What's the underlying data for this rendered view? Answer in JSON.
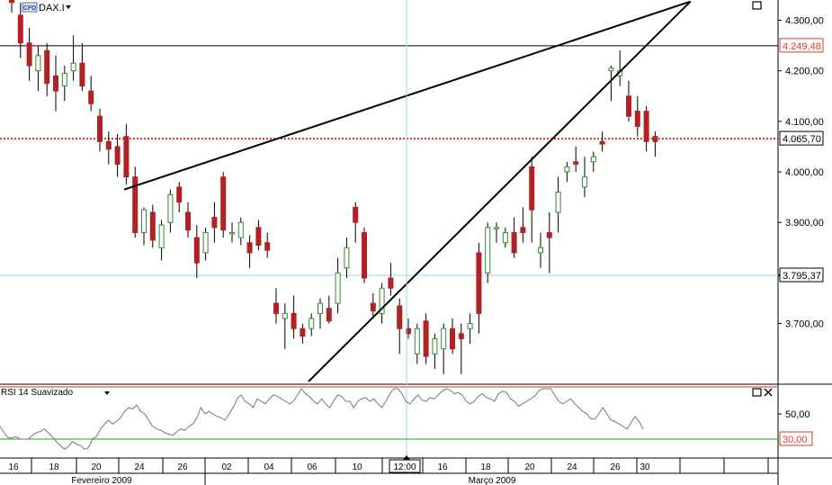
{
  "header": {
    "badge": "CFD",
    "symbol": "DAX.I",
    "dropdown_icon": "triangle-down"
  },
  "panels": {
    "maximize_icon": "window-square",
    "rsi_label": "RSI 14 Suavizado",
    "rsi_buttons": [
      "window-square",
      "close-x"
    ]
  },
  "colors": {
    "up": "#2e8b2e",
    "down": "#b22222",
    "trendline": "#000000",
    "dotted": "#cc0000",
    "crosshair": "#9fd6e8",
    "rsi_line": "#777777",
    "rsi_30": "#2e9e2e",
    "rsi_70": "#cc3333",
    "price_red_box": "#e03a2a"
  },
  "chart_data": [
    {
      "type": "candlestick",
      "symbol": "DAX.I",
      "ylim": [
        3580,
        4340
      ],
      "yticks": [
        "4.300,00",
        "4.200,00",
        "4.100,00",
        "4.000,00",
        "3.900,00",
        "3.700,00"
      ],
      "ytick_values": [
        4300,
        4200,
        4100,
        4000,
        3900,
        3700
      ],
      "price_labels": [
        {
          "label": "4.249,48",
          "value": 4249.48,
          "style": "red-box"
        },
        {
          "label": "4.065,70",
          "value": 4065.7,
          "style": "dark-box"
        },
        {
          "label": "3.795,37",
          "value": 3795.37,
          "style": "crosshair-box"
        }
      ],
      "horizontal_lines": [
        {
          "value": 4249.48,
          "style": "solid-black"
        },
        {
          "value": 4065.7,
          "style": "dotted-red"
        },
        {
          "value": 3795.37,
          "style": "crosshair"
        }
      ],
      "trendlines": [
        {
          "from": {
            "bar": 0,
            "price": 3965
          },
          "to": {
            "bar": 77,
            "price": 4337
          }
        },
        {
          "from": {
            "bar": 26,
            "price": 3590
          },
          "to": {
            "bar": 77,
            "price": 4337
          }
        }
      ],
      "bar_count": 74,
      "candles": [
        [
          4360,
          4380,
          4315,
          4335
        ],
        [
          4310,
          4335,
          4225,
          4255
        ],
        [
          4255,
          4285,
          4180,
          4210
        ],
        [
          4200,
          4250,
          4160,
          4230
        ],
        [
          4240,
          4255,
          4150,
          4175
        ],
        [
          4190,
          4230,
          4120,
          4160
        ],
        [
          4170,
          4210,
          4140,
          4195
        ],
        [
          4200,
          4270,
          4180,
          4215
        ],
        [
          4215,
          4255,
          4160,
          4170
        ],
        [
          4160,
          4190,
          4120,
          4135
        ],
        [
          4110,
          4125,
          4040,
          4060
        ],
        [
          4060,
          4080,
          4015,
          4045
        ],
        [
          4050,
          4075,
          3990,
          4015
        ],
        [
          4070,
          4095,
          3975,
          3990
        ],
        [
          3990,
          4010,
          3870,
          3880
        ],
        [
          3880,
          3930,
          3855,
          3925
        ],
        [
          3920,
          3935,
          3850,
          3865
        ],
        [
          3850,
          3905,
          3825,
          3895
        ],
        [
          3900,
          3965,
          3880,
          3955
        ],
        [
          3970,
          3980,
          3920,
          3940
        ],
        [
          3920,
          3940,
          3870,
          3885
        ],
        [
          3870,
          3895,
          3790,
          3820
        ],
        [
          3840,
          3890,
          3825,
          3880
        ],
        [
          3910,
          3940,
          3860,
          3890
        ],
        [
          3990,
          4000,
          3870,
          3885
        ],
        [
          3880,
          3900,
          3860,
          3880
        ],
        [
          3870,
          3910,
          3855,
          3900
        ],
        [
          3860,
          3875,
          3810,
          3840
        ],
        [
          3890,
          3905,
          3845,
          3855
        ],
        [
          3860,
          3880,
          3830,
          3845
        ],
        [
          3740,
          3770,
          3700,
          3720
        ],
        [
          3710,
          3740,
          3650,
          3720
        ],
        [
          3720,
          3755,
          3670,
          3690
        ],
        [
          3690,
          3700,
          3660,
          3675
        ],
        [
          3690,
          3720,
          3675,
          3710
        ],
        [
          3720,
          3750,
          3690,
          3740
        ],
        [
          3730,
          3755,
          3700,
          3705
        ],
        [
          3740,
          3830,
          3720,
          3800
        ],
        [
          3810,
          3870,
          3790,
          3850
        ],
        [
          3930,
          3940,
          3860,
          3900
        ],
        [
          3880,
          3890,
          3780,
          3790
        ],
        [
          3740,
          3760,
          3710,
          3725
        ],
        [
          3720,
          3780,
          3700,
          3770
        ],
        [
          3790,
          3820,
          3755,
          3770
        ],
        [
          3735,
          3750,
          3640,
          3690
        ],
        [
          3690,
          3710,
          3670,
          3680
        ],
        [
          3640,
          3700,
          3620,
          3690
        ],
        [
          3705,
          3720,
          3620,
          3635
        ],
        [
          3640,
          3680,
          3610,
          3670
        ],
        [
          3650,
          3700,
          3600,
          3690
        ],
        [
          3690,
          3710,
          3640,
          3650
        ],
        [
          3680,
          3700,
          3600,
          3670
        ],
        [
          3690,
          3720,
          3660,
          3700
        ],
        [
          3840,
          3860,
          3680,
          3720
        ],
        [
          3800,
          3900,
          3780,
          3890
        ],
        [
          3890,
          3900,
          3860,
          3890
        ],
        [
          3860,
          3890,
          3850,
          3880
        ],
        [
          3880,
          3910,
          3830,
          3840
        ],
        [
          3890,
          3930,
          3860,
          3880
        ],
        [
          4010,
          4030,
          3860,
          3925
        ],
        [
          3840,
          3880,
          3810,
          3850
        ],
        [
          3880,
          3920,
          3800,
          3870
        ],
        [
          3920,
          3990,
          3880,
          3960
        ],
        [
          4000,
          4020,
          3980,
          4010
        ],
        [
          4020,
          4050,
          4000,
          4015
        ],
        [
          3970,
          4030,
          3950,
          3990
        ],
        [
          4020,
          4040,
          4000,
          4030
        ],
        [
          4060,
          4080,
          4040,
          4055
        ],
        [
          4200,
          4210,
          4140,
          4205
        ],
        [
          4190,
          4240,
          4170,
          4200
        ],
        [
          4150,
          4180,
          4100,
          4110
        ],
        [
          4120,
          4150,
          4070,
          4090
        ],
        [
          4120,
          4130,
          4040,
          4060
        ],
        [
          4070,
          4080,
          4030,
          4060
        ]
      ]
    },
    {
      "type": "line",
      "title": "RSI 14 Suavizado",
      "ylim": [
        0,
        100
      ],
      "yticks": [
        "50,00"
      ],
      "ytick_values": [
        50
      ],
      "levels": [
        {
          "label": "30,00",
          "value": 30,
          "style": "green-box"
        },
        {
          "value": 70,
          "style": "red-line"
        }
      ],
      "values": [
        40,
        35,
        31,
        31,
        32,
        30,
        30,
        30,
        33,
        35,
        36,
        38,
        35,
        32,
        28,
        25,
        22,
        24,
        28,
        26,
        25,
        22,
        23,
        30,
        32,
        38,
        42,
        45,
        42,
        44,
        47,
        52,
        55,
        54,
        57,
        52,
        50,
        45,
        40,
        38,
        37,
        35,
        34,
        33,
        36,
        38,
        37,
        40,
        42,
        47,
        55,
        50,
        52,
        50,
        48,
        47,
        45,
        50,
        55,
        62,
        65,
        60,
        58,
        55,
        62,
        60,
        58,
        62,
        65,
        64,
        62,
        60,
        58,
        60,
        65,
        70,
        66,
        64,
        60,
        58,
        62,
        58,
        55,
        60,
        65,
        64,
        60,
        60,
        55,
        60,
        62,
        63,
        60,
        62,
        58,
        55,
        60,
        66,
        72,
        70,
        66,
        60,
        58,
        62,
        65,
        61,
        60,
        63,
        62,
        65,
        68,
        70,
        69,
        66,
        67,
        65,
        60,
        58,
        60,
        64,
        66,
        63,
        62,
        60,
        66,
        68,
        67,
        62,
        60,
        56,
        58,
        60,
        62,
        64,
        68,
        72,
        75,
        70,
        65,
        60,
        58,
        60,
        62,
        58,
        55,
        52,
        50,
        46,
        46,
        50,
        55,
        50,
        45,
        44,
        42,
        40,
        38,
        43,
        48,
        44,
        38
      ]
    }
  ],
  "x_axis": {
    "day_labels": [
      "16",
      "18",
      "20",
      "24",
      "26",
      "02",
      "04",
      "06",
      "10",
      "12:00",
      "16",
      "18",
      "20",
      "24",
      "26",
      "30"
    ],
    "month_labels": [
      "Fevereiro 2009",
      "Março 2009"
    ]
  }
}
